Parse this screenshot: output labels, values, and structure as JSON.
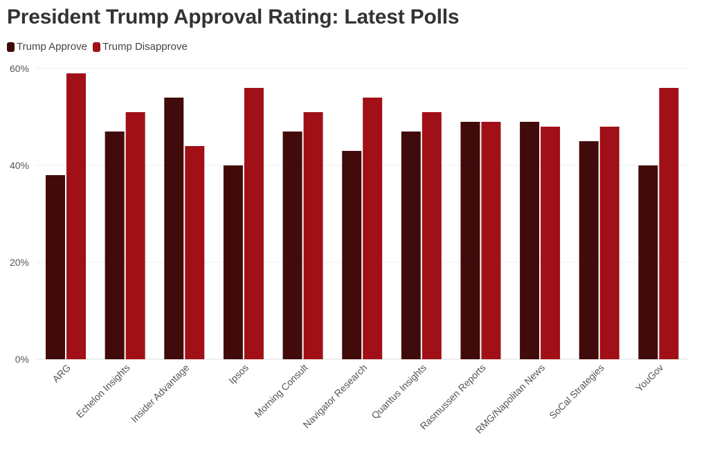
{
  "chart_data": {
    "type": "bar",
    "title": "President Trump Approval Rating: Latest Polls",
    "xlabel": "",
    "ylabel": "",
    "ylim": [
      0,
      60
    ],
    "yticks": [
      0,
      20,
      40,
      60
    ],
    "ytick_labels": [
      "0%",
      "20%",
      "40%",
      "60%"
    ],
    "legend_position": "top-left",
    "categories": [
      "ARG",
      "Echelon Insights",
      "Insider Advantage",
      "Ipsos",
      "Morning Consult",
      "Navigator Research",
      "Quantus Insights",
      "Rasmussen Reports",
      "RMG/Napolitan News",
      "SoCal Strategies",
      "YouGov"
    ],
    "series": [
      {
        "name": "Trump Approve",
        "color": "#420b0b",
        "values": [
          38,
          47,
          54,
          40,
          47,
          43,
          47,
          49,
          49,
          45,
          40
        ]
      },
      {
        "name": "Trump Disapprove",
        "color": "#a01016",
        "values": [
          59,
          51,
          44,
          56,
          51,
          54,
          51,
          49,
          48,
          48,
          56
        ]
      }
    ]
  }
}
